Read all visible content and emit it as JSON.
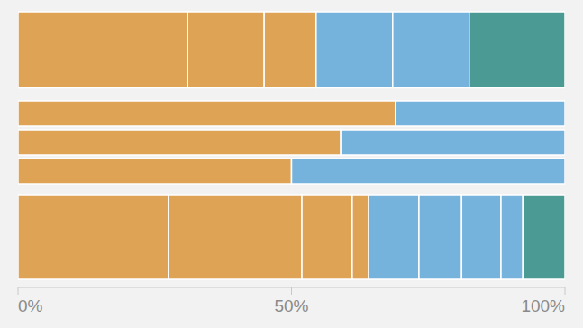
{
  "chart_data": [
    {
      "type": "bar",
      "orientation": "horizontal",
      "stacked": true,
      "tick_labels": false,
      "categories": [
        null
      ],
      "xlim": [
        0,
        100
      ],
      "series": [
        {
          "color": "#dfa356",
          "values": [
            31
          ]
        },
        {
          "color": "#dfa356",
          "values": [
            14
          ]
        },
        {
          "color": "#dfa356",
          "values": [
            9.5
          ]
        },
        {
          "color": "#76b3dc",
          "values": [
            14
          ]
        },
        {
          "color": "#76b3dc",
          "values": [
            14
          ]
        },
        {
          "color": "#4c9a94",
          "values": [
            17.5
          ]
        }
      ]
    },
    {
      "type": "bar",
      "orientation": "horizontal",
      "stacked": true,
      "tick_labels": false,
      "categories": [
        null,
        null,
        null
      ],
      "xlim": [
        0,
        100
      ],
      "series": [
        {
          "color": "#dfa356",
          "values": [
            69,
            59,
            50
          ]
        },
        {
          "color": "#76b3dc",
          "values": [
            31,
            41,
            50
          ]
        }
      ]
    },
    {
      "type": "bar",
      "orientation": "horizontal",
      "stacked": true,
      "tick_labels": "x",
      "categories": [
        null
      ],
      "xlim": [
        0,
        100
      ],
      "xticks": [
        {
          "value": 0,
          "label": "0%"
        },
        {
          "value": 50,
          "label": "50%"
        },
        {
          "value": 100,
          "label": "100%"
        }
      ],
      "series": [
        {
          "color": "#dfa356",
          "values": [
            27.5
          ]
        },
        {
          "color": "#dfa356",
          "values": [
            24.4
          ]
        },
        {
          "color": "#dfa356",
          "values": [
            9.2
          ]
        },
        {
          "color": "#dfa356",
          "values": [
            3
          ]
        },
        {
          "color": "#76b3dc",
          "values": [
            9.2
          ]
        },
        {
          "color": "#76b3dc",
          "values": [
            7.8
          ]
        },
        {
          "color": "#76b3dc",
          "values": [
            7.2
          ]
        },
        {
          "color": "#76b3dc",
          "values": [
            4
          ]
        },
        {
          "color": "#4c9a94",
          "values": [
            7.7
          ]
        }
      ]
    }
  ]
}
